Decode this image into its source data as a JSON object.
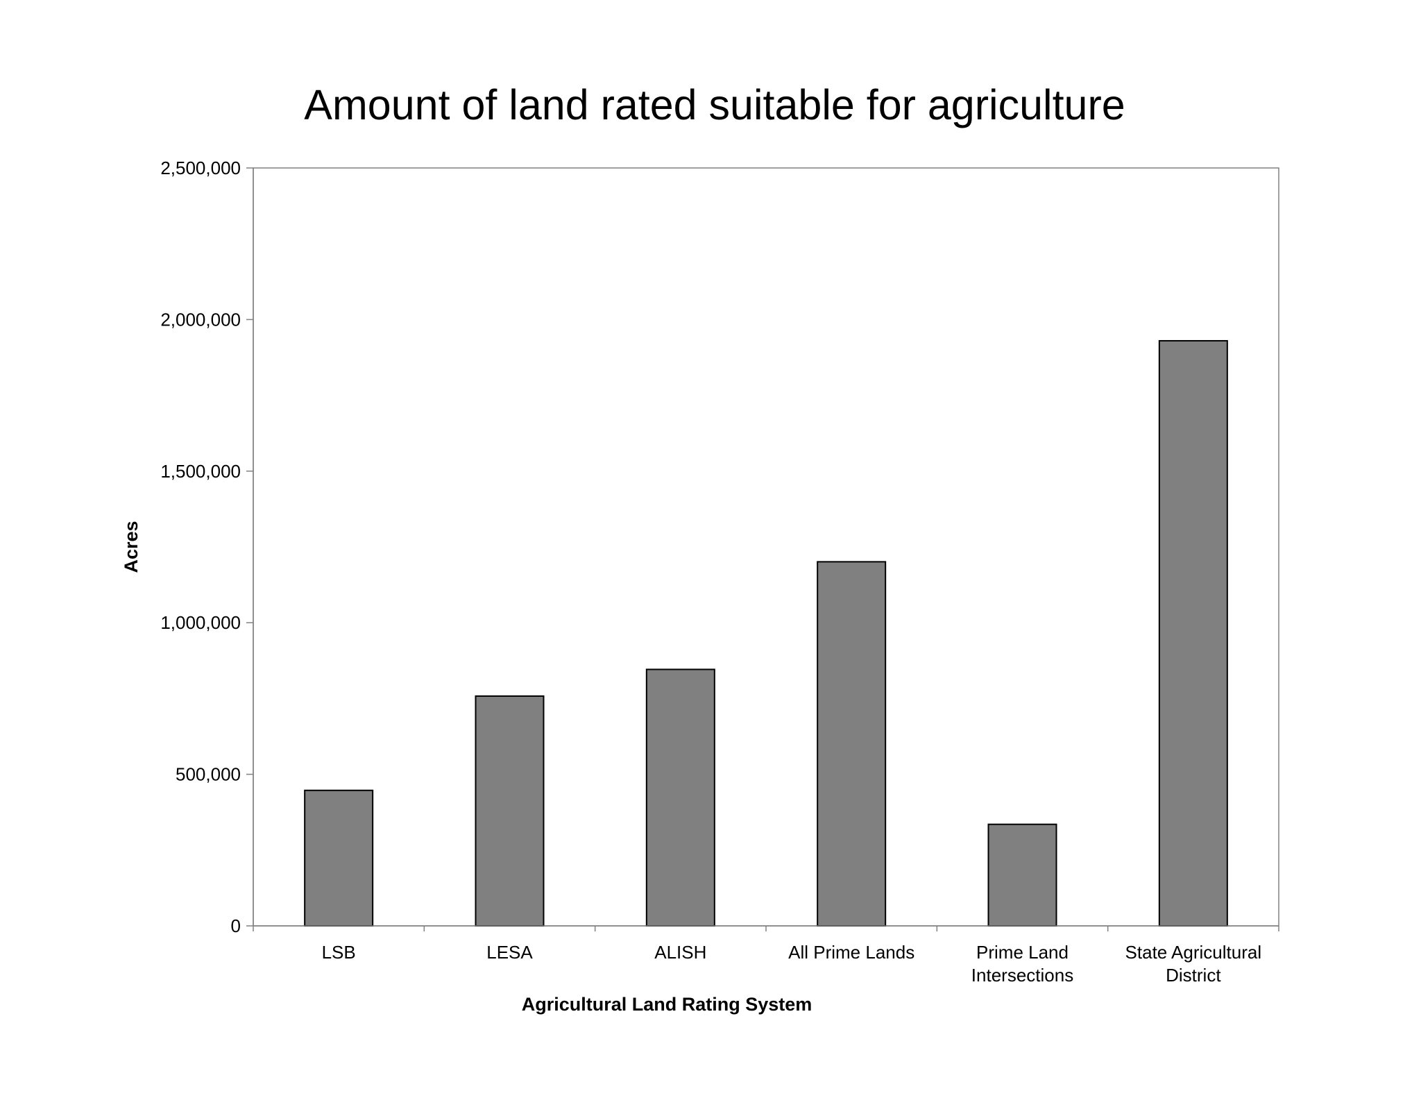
{
  "chart_data": {
    "type": "bar",
    "title": "Amount of land rated suitable for agriculture",
    "xlabel": "Agricultural Land Rating System",
    "ylabel": "Acres",
    "categories": [
      [
        "LSB"
      ],
      [
        "LESA"
      ],
      [
        "ALISH"
      ],
      [
        "All Prime Lands"
      ],
      [
        "Prime Land",
        "Intersections"
      ],
      [
        "State Agricultural",
        "District"
      ]
    ],
    "values": [
      447000,
      758000,
      846000,
      1201000,
      335000,
      1930000
    ],
    "ylim": [
      0,
      2500000
    ],
    "yticks": [
      0,
      500000,
      1000000,
      1500000,
      2000000,
      2500000
    ],
    "ytick_labels": [
      "0",
      "500,000",
      "1,000,000",
      "1,500,000",
      "2,000,000",
      "2,500,000"
    ],
    "grid": false,
    "legend": "none",
    "colors": {
      "bar_fill": "#808080",
      "bar_stroke": "#000000",
      "plot_border": "#808080",
      "axis_line": "#808080",
      "background": "#ffffff"
    }
  }
}
